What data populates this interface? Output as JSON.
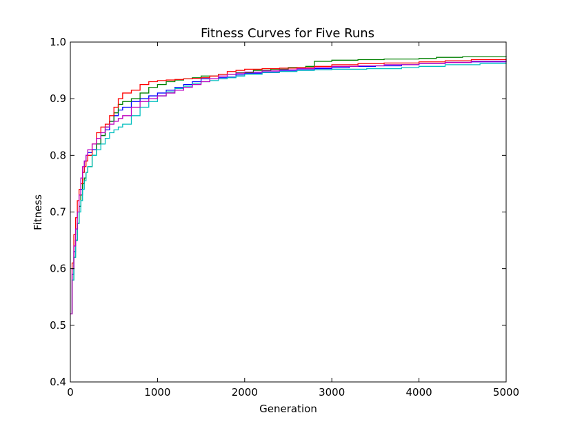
{
  "chart_data": {
    "type": "line",
    "title": "Fitness Curves for Five Runs",
    "xlabel": "Generation",
    "ylabel": "Fitness",
    "xlim": [
      0,
      5000
    ],
    "ylim": [
      0.4,
      1.0
    ],
    "xticks": [
      0,
      1000,
      2000,
      3000,
      4000,
      5000
    ],
    "xtick_labels": [
      "0",
      "1000",
      "2000",
      "3000",
      "4000",
      "5000"
    ],
    "yticks": [
      0.4,
      0.5,
      0.6,
      0.7,
      0.8,
      0.9,
      1.0
    ],
    "ytick_labels": [
      "0.4",
      "0.5",
      "0.6",
      "0.7",
      "0.8",
      "0.9",
      "1.0"
    ],
    "grid": false,
    "legend": "none",
    "step": true,
    "series": [
      {
        "color": "#0000ff",
        "points": [
          [
            0,
            0.52
          ],
          [
            20,
            0.59
          ],
          [
            40,
            0.63
          ],
          [
            60,
            0.65
          ],
          [
            80,
            0.68
          ],
          [
            100,
            0.71
          ],
          [
            120,
            0.74
          ],
          [
            140,
            0.77
          ],
          [
            160,
            0.79
          ],
          [
            180,
            0.8
          ],
          [
            200,
            0.805
          ],
          [
            250,
            0.81
          ],
          [
            300,
            0.82
          ],
          [
            350,
            0.835
          ],
          [
            400,
            0.845
          ],
          [
            450,
            0.86
          ],
          [
            500,
            0.87
          ],
          [
            550,
            0.88
          ],
          [
            600,
            0.885
          ],
          [
            700,
            0.895
          ],
          [
            800,
            0.9
          ],
          [
            900,
            0.905
          ],
          [
            1000,
            0.91
          ],
          [
            1100,
            0.915
          ],
          [
            1200,
            0.92
          ],
          [
            1300,
            0.925
          ],
          [
            1400,
            0.93
          ],
          [
            1500,
            0.935
          ],
          [
            1600,
            0.935
          ],
          [
            1700,
            0.937
          ],
          [
            1800,
            0.938
          ],
          [
            1900,
            0.942
          ],
          [
            2000,
            0.945
          ],
          [
            2200,
            0.947
          ],
          [
            2400,
            0.949
          ],
          [
            2600,
            0.951
          ],
          [
            2800,
            0.953
          ],
          [
            3000,
            0.955
          ],
          [
            3200,
            0.957
          ],
          [
            3500,
            0.958
          ],
          [
            3800,
            0.96
          ],
          [
            4000,
            0.962
          ],
          [
            4300,
            0.964
          ],
          [
            4600,
            0.965
          ],
          [
            5000,
            0.966
          ]
        ]
      },
      {
        "color": "#008000",
        "points": [
          [
            0,
            0.52
          ],
          [
            20,
            0.58
          ],
          [
            40,
            0.62
          ],
          [
            60,
            0.65
          ],
          [
            80,
            0.68
          ],
          [
            100,
            0.71
          ],
          [
            120,
            0.73
          ],
          [
            140,
            0.75
          ],
          [
            160,
            0.76
          ],
          [
            180,
            0.77
          ],
          [
            200,
            0.78
          ],
          [
            250,
            0.8
          ],
          [
            300,
            0.82
          ],
          [
            350,
            0.835
          ],
          [
            400,
            0.85
          ],
          [
            450,
            0.86
          ],
          [
            500,
            0.875
          ],
          [
            550,
            0.89
          ],
          [
            600,
            0.895
          ],
          [
            700,
            0.9
          ],
          [
            800,
            0.91
          ],
          [
            900,
            0.92
          ],
          [
            1000,
            0.925
          ],
          [
            1100,
            0.93
          ],
          [
            1200,
            0.933
          ],
          [
            1300,
            0.935
          ],
          [
            1400,
            0.937
          ],
          [
            1500,
            0.94
          ],
          [
            1700,
            0.943
          ],
          [
            1900,
            0.946
          ],
          [
            2100,
            0.95
          ],
          [
            2300,
            0.952
          ],
          [
            2500,
            0.955
          ],
          [
            2700,
            0.957
          ],
          [
            2800,
            0.966
          ],
          [
            3000,
            0.968
          ],
          [
            3300,
            0.969
          ],
          [
            3600,
            0.97
          ],
          [
            4000,
            0.971
          ],
          [
            4200,
            0.973
          ],
          [
            4500,
            0.974
          ],
          [
            5000,
            0.975
          ]
        ]
      },
      {
        "color": "#ff0000",
        "points": [
          [
            0,
            0.52
          ],
          [
            20,
            0.61
          ],
          [
            40,
            0.66
          ],
          [
            60,
            0.69
          ],
          [
            80,
            0.72
          ],
          [
            100,
            0.74
          ],
          [
            120,
            0.75
          ],
          [
            140,
            0.77
          ],
          [
            160,
            0.78
          ],
          [
            180,
            0.79
          ],
          [
            200,
            0.8
          ],
          [
            250,
            0.82
          ],
          [
            300,
            0.84
          ],
          [
            350,
            0.85
          ],
          [
            400,
            0.855
          ],
          [
            450,
            0.87
          ],
          [
            500,
            0.885
          ],
          [
            550,
            0.9
          ],
          [
            600,
            0.91
          ],
          [
            700,
            0.915
          ],
          [
            800,
            0.925
          ],
          [
            900,
            0.93
          ],
          [
            1000,
            0.932
          ],
          [
            1100,
            0.933
          ],
          [
            1200,
            0.934
          ],
          [
            1300,
            0.935
          ],
          [
            1400,
            0.936
          ],
          [
            1500,
            0.937
          ],
          [
            1600,
            0.94
          ],
          [
            1700,
            0.943
          ],
          [
            1800,
            0.948
          ],
          [
            1900,
            0.95
          ],
          [
            2000,
            0.952
          ],
          [
            2200,
            0.953
          ],
          [
            2400,
            0.954
          ],
          [
            2600,
            0.955
          ],
          [
            2800,
            0.957
          ],
          [
            3000,
            0.96
          ],
          [
            3300,
            0.962
          ],
          [
            3600,
            0.963
          ],
          [
            4000,
            0.965
          ],
          [
            4300,
            0.967
          ],
          [
            4600,
            0.969
          ],
          [
            5000,
            0.971
          ]
        ]
      },
      {
        "color": "#00bfbf",
        "points": [
          [
            0,
            0.52
          ],
          [
            20,
            0.58
          ],
          [
            40,
            0.62
          ],
          [
            60,
            0.65
          ],
          [
            80,
            0.68
          ],
          [
            100,
            0.7
          ],
          [
            120,
            0.72
          ],
          [
            140,
            0.74
          ],
          [
            160,
            0.755
          ],
          [
            180,
            0.77
          ],
          [
            200,
            0.78
          ],
          [
            250,
            0.8
          ],
          [
            300,
            0.81
          ],
          [
            350,
            0.82
          ],
          [
            400,
            0.83
          ],
          [
            450,
            0.84
          ],
          [
            500,
            0.845
          ],
          [
            550,
            0.85
          ],
          [
            600,
            0.855
          ],
          [
            700,
            0.87
          ],
          [
            800,
            0.885
          ],
          [
            900,
            0.895
          ],
          [
            1000,
            0.905
          ],
          [
            1100,
            0.912
          ],
          [
            1200,
            0.918
          ],
          [
            1300,
            0.922
          ],
          [
            1400,
            0.927
          ],
          [
            1500,
            0.93
          ],
          [
            1600,
            0.932
          ],
          [
            1700,
            0.935
          ],
          [
            1800,
            0.937
          ],
          [
            1900,
            0.94
          ],
          [
            2000,
            0.943
          ],
          [
            2200,
            0.946
          ],
          [
            2400,
            0.948
          ],
          [
            2600,
            0.95
          ],
          [
            2800,
            0.951
          ],
          [
            3000,
            0.952
          ],
          [
            3400,
            0.953
          ],
          [
            3800,
            0.955
          ],
          [
            4000,
            0.957
          ],
          [
            4300,
            0.96
          ],
          [
            4700,
            0.962
          ],
          [
            5000,
            0.963
          ]
        ]
      },
      {
        "color": "#bf00bf",
        "points": [
          [
            0,
            0.52
          ],
          [
            20,
            0.6
          ],
          [
            40,
            0.64
          ],
          [
            60,
            0.67
          ],
          [
            80,
            0.7
          ],
          [
            100,
            0.73
          ],
          [
            120,
            0.76
          ],
          [
            140,
            0.78
          ],
          [
            160,
            0.79
          ],
          [
            180,
            0.8
          ],
          [
            200,
            0.81
          ],
          [
            250,
            0.82
          ],
          [
            300,
            0.83
          ],
          [
            350,
            0.84
          ],
          [
            400,
            0.85
          ],
          [
            450,
            0.855
          ],
          [
            500,
            0.86
          ],
          [
            550,
            0.865
          ],
          [
            600,
            0.87
          ],
          [
            700,
            0.885
          ],
          [
            800,
            0.895
          ],
          [
            900,
            0.9
          ],
          [
            1000,
            0.905
          ],
          [
            1100,
            0.91
          ],
          [
            1200,
            0.915
          ],
          [
            1300,
            0.92
          ],
          [
            1400,
            0.925
          ],
          [
            1500,
            0.93
          ],
          [
            1600,
            0.935
          ],
          [
            1700,
            0.94
          ],
          [
            1800,
            0.943
          ],
          [
            1900,
            0.945
          ],
          [
            2000,
            0.947
          ],
          [
            2200,
            0.949
          ],
          [
            2400,
            0.951
          ],
          [
            2600,
            0.953
          ],
          [
            2800,
            0.955
          ],
          [
            3000,
            0.957
          ],
          [
            3300,
            0.958
          ],
          [
            3600,
            0.96
          ],
          [
            4000,
            0.962
          ],
          [
            4300,
            0.964
          ],
          [
            4600,
            0.966
          ],
          [
            5000,
            0.968
          ]
        ]
      }
    ]
  }
}
